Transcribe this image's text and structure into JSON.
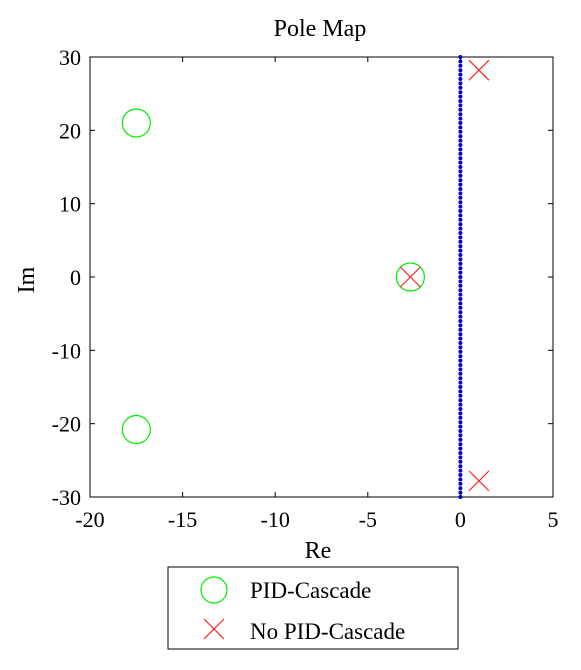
{
  "chart_data": {
    "type": "scatter",
    "title": "Pole Map",
    "xlabel": "Re",
    "ylabel": "Im",
    "xlim": [
      -20,
      5
    ],
    "ylim": [
      -30,
      30
    ],
    "xticks": [
      -20,
      -15,
      -10,
      -5,
      0,
      5
    ],
    "yticks": [
      -30,
      -20,
      -10,
      0,
      10,
      20,
      30
    ],
    "xtick_labels": [
      "-20",
      "-15",
      "-10",
      "-5",
      "0",
      "5"
    ],
    "ytick_labels": [
      "-30",
      "-20",
      "-10",
      "0",
      "10",
      "20",
      "30"
    ],
    "grid": false,
    "legend_position": "bottom-center-outside",
    "series": [
      {
        "name": "PID-Cascade",
        "marker": "circle",
        "color": "#00ee00",
        "points": [
          [
            -17.5,
            21.0
          ],
          [
            -17.5,
            -20.8
          ],
          [
            -2.7,
            0.0
          ]
        ]
      },
      {
        "name": "No PID-Cascade",
        "marker": "x",
        "color": "#ff2020",
        "points": [
          [
            1.0,
            28.2
          ],
          [
            1.0,
            -27.8
          ],
          [
            -2.7,
            0.0
          ]
        ]
      }
    ],
    "imaginary_axis_poles": {
      "marker": "dot",
      "color": "#0000cc",
      "x": 0.0,
      "y_from": -30,
      "y_to": 30,
      "step": 0.6
    }
  }
}
